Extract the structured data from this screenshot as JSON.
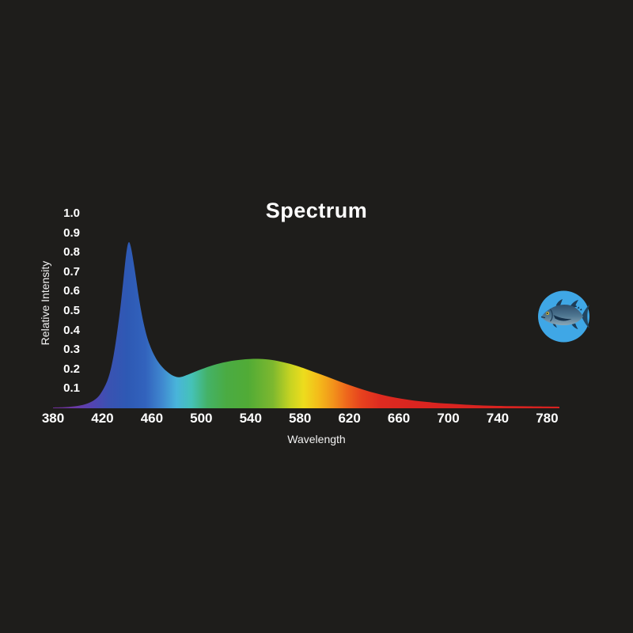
{
  "page": {
    "background": "#1e1d1b"
  },
  "chart_data": {
    "type": "area",
    "title": "Spectrum",
    "xlabel": "Wavelength",
    "ylabel": "Relative Intensity",
    "x_ticks": [
      "380",
      "420",
      "460",
      "500",
      "540",
      "580",
      "620",
      "660",
      "700",
      "740",
      "780"
    ],
    "y_ticks": [
      "0.1",
      "0.2",
      "0.3",
      "0.4",
      "0.5",
      "0.6",
      "0.7",
      "0.8",
      "0.9",
      "1.0"
    ],
    "x_range": [
      380,
      790
    ],
    "y_range": [
      0,
      1.0
    ],
    "grid": false,
    "legend": false,
    "text_color": "#ffffff",
    "series": [
      {
        "name": "relative-intensity",
        "points": [
          [
            380,
            0.004
          ],
          [
            390,
            0.006
          ],
          [
            400,
            0.012
          ],
          [
            408,
            0.025
          ],
          [
            415,
            0.05
          ],
          [
            420,
            0.09
          ],
          [
            425,
            0.16
          ],
          [
            429,
            0.27
          ],
          [
            433,
            0.44
          ],
          [
            436,
            0.6
          ],
          [
            439,
            0.78
          ],
          [
            441,
            0.85
          ],
          [
            443,
            0.83
          ],
          [
            446,
            0.72
          ],
          [
            450,
            0.55
          ],
          [
            454,
            0.42
          ],
          [
            458,
            0.33
          ],
          [
            463,
            0.26
          ],
          [
            468,
            0.215
          ],
          [
            473,
            0.185
          ],
          [
            478,
            0.165
          ],
          [
            483,
            0.16
          ],
          [
            490,
            0.175
          ],
          [
            500,
            0.2
          ],
          [
            510,
            0.222
          ],
          [
            520,
            0.238
          ],
          [
            530,
            0.248
          ],
          [
            542,
            0.254
          ],
          [
            552,
            0.252
          ],
          [
            562,
            0.243
          ],
          [
            572,
            0.228
          ],
          [
            582,
            0.208
          ],
          [
            592,
            0.185
          ],
          [
            602,
            0.162
          ],
          [
            612,
            0.138
          ],
          [
            622,
            0.115
          ],
          [
            632,
            0.094
          ],
          [
            642,
            0.076
          ],
          [
            652,
            0.061
          ],
          [
            662,
            0.049
          ],
          [
            672,
            0.04
          ],
          [
            682,
            0.033
          ],
          [
            692,
            0.027
          ],
          [
            702,
            0.023
          ],
          [
            712,
            0.019
          ],
          [
            722,
            0.016
          ],
          [
            735,
            0.013
          ],
          [
            750,
            0.011
          ],
          [
            765,
            0.01
          ],
          [
            780,
            0.009
          ],
          [
            790,
            0.008
          ]
        ]
      }
    ],
    "gradient_stops": [
      {
        "wavelength": 380,
        "color": "#6d2d92"
      },
      {
        "wavelength": 398,
        "color": "#6b3aa6"
      },
      {
        "wavelength": 412,
        "color": "#5344b1"
      },
      {
        "wavelength": 425,
        "color": "#3a52b2"
      },
      {
        "wavelength": 440,
        "color": "#2e59b4"
      },
      {
        "wavelength": 455,
        "color": "#3263bd"
      },
      {
        "wavelength": 468,
        "color": "#3f87cf"
      },
      {
        "wavelength": 480,
        "color": "#49b4da"
      },
      {
        "wavelength": 492,
        "color": "#45c2b8"
      },
      {
        "wavelength": 505,
        "color": "#44b267"
      },
      {
        "wavelength": 520,
        "color": "#4aab43"
      },
      {
        "wavelength": 538,
        "color": "#51ab36"
      },
      {
        "wavelength": 558,
        "color": "#7db82f"
      },
      {
        "wavelength": 572,
        "color": "#c6d322"
      },
      {
        "wavelength": 583,
        "color": "#eddc1d"
      },
      {
        "wavelength": 595,
        "color": "#f4bb1a"
      },
      {
        "wavelength": 607,
        "color": "#f2921b"
      },
      {
        "wavelength": 618,
        "color": "#ee661c"
      },
      {
        "wavelength": 630,
        "color": "#e6411e"
      },
      {
        "wavelength": 645,
        "color": "#de2b20"
      },
      {
        "wavelength": 670,
        "color": "#da2520"
      },
      {
        "wavelength": 790,
        "color": "#d62220"
      }
    ]
  },
  "badge": {
    "icon": "fish-icon",
    "circle": "#3fa7e6",
    "body_dark": "#2f4f6d",
    "body_mid": "#4f7792",
    "belly": "#8aa7b7",
    "fins": "#1e3c57",
    "pectoral": "#16324c",
    "tail": "#224560",
    "eye": "#e9c636",
    "pupil": "#101e2b"
  }
}
